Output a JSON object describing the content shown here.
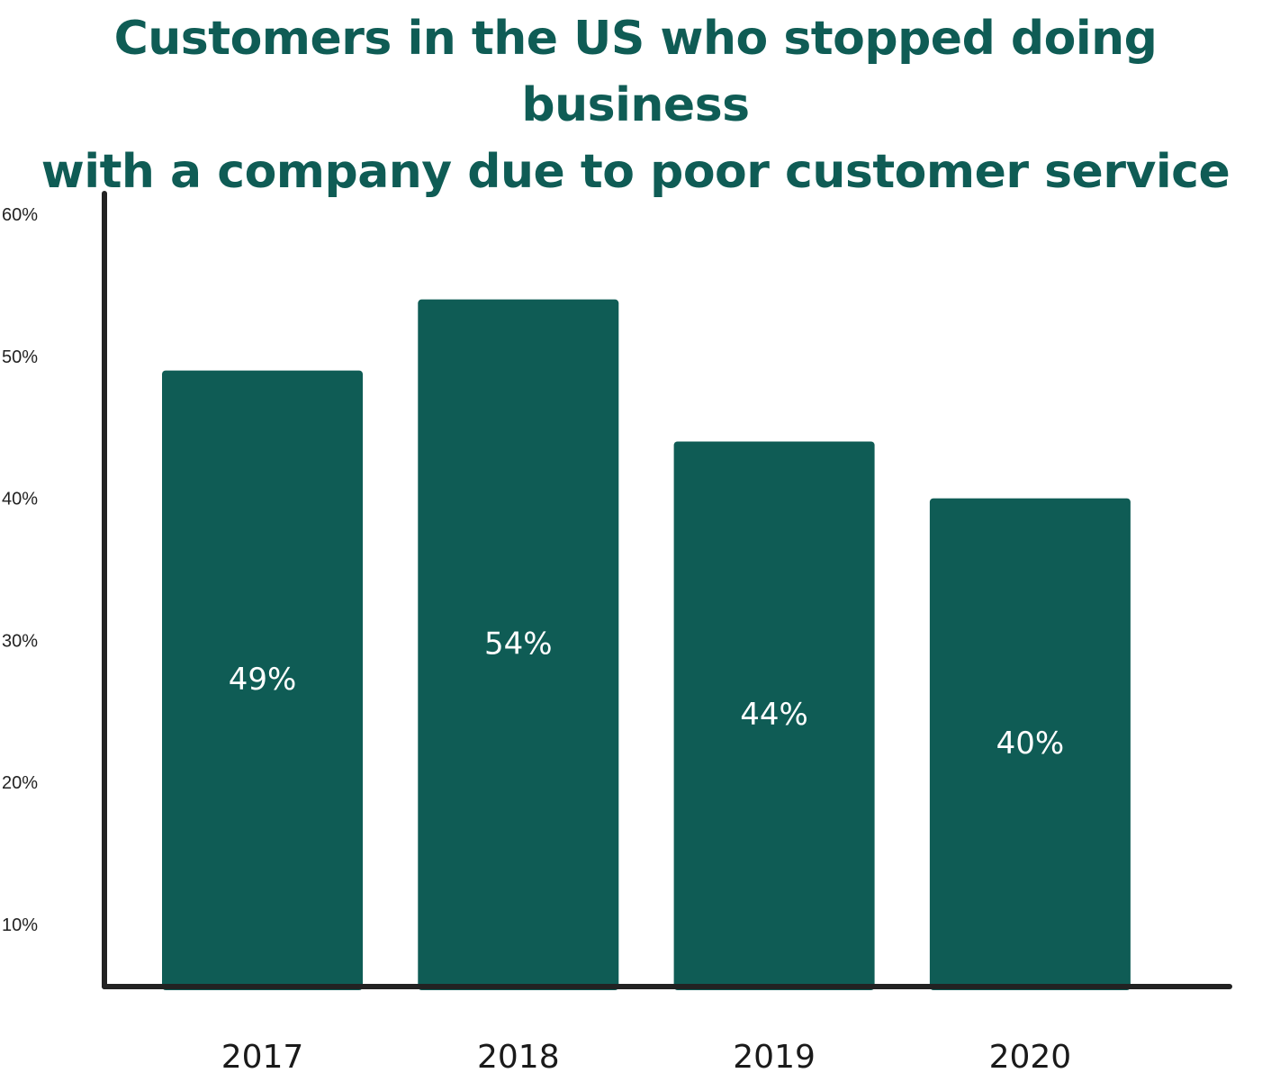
{
  "chart_data": {
    "type": "bar",
    "title_lines": [
      "Customers in the US who stopped doing business",
      "with a company due to poor customer service"
    ],
    "categories": [
      "2017",
      "2018",
      "2019",
      "2020"
    ],
    "values": [
      49,
      54,
      44,
      40
    ],
    "data_labels": [
      "49%",
      "54%",
      "44%",
      "40%"
    ],
    "y_ticks": [
      {
        "value": 10,
        "label": "10%"
      },
      {
        "value": 20,
        "label": "20%"
      },
      {
        "value": 30,
        "label": "30%"
      },
      {
        "value": 40,
        "label": "40%"
      },
      {
        "value": 50,
        "label": "50%"
      },
      {
        "value": 60,
        "label": "60%"
      }
    ],
    "ylim": [
      6,
      61
    ],
    "grid": false,
    "bar_color": "#0f5c55",
    "title_color": "#0f5c55",
    "axis_color": "#222222"
  }
}
